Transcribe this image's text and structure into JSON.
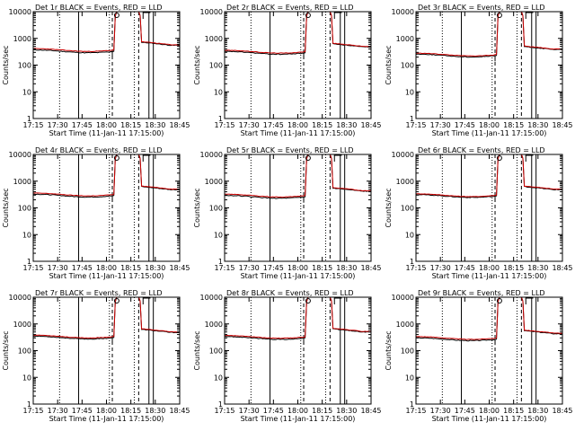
{
  "chart_data": [
    {
      "type": "line",
      "title": "Det 1r BLACK = Events, RED = LLD",
      "xlabel": "Start Time (11-Jan-11 17:15:00)",
      "ylabel": "Counts/sec",
      "yscale": "log",
      "ylim": [
        1,
        10000
      ],
      "xlim": [
        0,
        100
      ],
      "x_tick_labels": [
        "17:15",
        "17:30",
        "17:45",
        "18:00",
        "18:15",
        "18:30",
        "18:45"
      ],
      "y_tick_labels": [
        "1",
        "10",
        "100",
        "1000",
        "10000"
      ],
      "grid": false,
      "events_baseline": 330,
      "lld_baseline": 370,
      "post_level": 550
    },
    {
      "type": "line",
      "title": "Det 2r BLACK = Events, RED = LLD",
      "xlabel": "Start Time (11-Jan-11 17:15:00)",
      "ylabel": "Counts/sec",
      "yscale": "log",
      "ylim": [
        1,
        10000
      ],
      "xlim": [
        0,
        100
      ],
      "x_tick_labels": [
        "17:15",
        "17:30",
        "17:45",
        "18:00",
        "18:15",
        "18:30",
        "18:45"
      ],
      "y_tick_labels": [
        "1",
        "10",
        "100",
        "1000",
        "10000"
      ],
      "grid": false,
      "events_baseline": 290,
      "lld_baseline": 320,
      "post_level": 480
    },
    {
      "type": "line",
      "title": "Det 3r BLACK = Events, RED = LLD",
      "xlabel": "Start Time (11-Jan-11 17:15:00)",
      "ylabel": "Counts/sec",
      "yscale": "log",
      "ylim": [
        1,
        10000
      ],
      "xlim": [
        0,
        100
      ],
      "x_tick_labels": [
        "17:15",
        "17:30",
        "17:45",
        "18:00",
        "18:15",
        "18:30",
        "18:45"
      ],
      "y_tick_labels": [
        "1",
        "10",
        "100",
        "1000",
        "10000"
      ],
      "grid": false,
      "events_baseline": 230,
      "lld_baseline": 250,
      "post_level": 380
    },
    {
      "type": "line",
      "title": "Det 4r BLACK = Events, RED = LLD",
      "xlabel": "Start Time (11-Jan-11 17:15:00)",
      "ylabel": "Counts/sec",
      "yscale": "log",
      "ylim": [
        1,
        10000
      ],
      "xlim": [
        0,
        100
      ],
      "x_tick_labels": [
        "17:15",
        "17:30",
        "17:45",
        "18:00",
        "18:15",
        "18:30",
        "18:45"
      ],
      "y_tick_labels": [
        "1",
        "10",
        "100",
        "1000",
        "10000"
      ],
      "grid": false,
      "events_baseline": 290,
      "lld_baseline": 320,
      "post_level": 480
    },
    {
      "type": "line",
      "title": "Det 5r BLACK = Events, RED = LLD",
      "xlabel": "Start Time (11-Jan-11 17:15:00)",
      "ylabel": "Counts/sec",
      "yscale": "log",
      "ylim": [
        1,
        10000
      ],
      "xlim": [
        0,
        100
      ],
      "x_tick_labels": [
        "17:15",
        "17:30",
        "17:45",
        "18:00",
        "18:15",
        "18:30",
        "18:45"
      ],
      "y_tick_labels": [
        "1",
        "10",
        "100",
        "1000",
        "10000"
      ],
      "grid": false,
      "events_baseline": 260,
      "lld_baseline": 290,
      "post_level": 420
    },
    {
      "type": "line",
      "title": "Det 6r BLACK = Events, RED = LLD",
      "xlabel": "Start Time (11-Jan-11 17:15:00)",
      "ylabel": "Counts/sec",
      "yscale": "log",
      "ylim": [
        1,
        10000
      ],
      "xlim": [
        0,
        100
      ],
      "x_tick_labels": [
        "17:15",
        "17:30",
        "17:45",
        "18:00",
        "18:15",
        "18:30",
        "18:45"
      ],
      "y_tick_labels": [
        "1",
        "10",
        "100",
        "1000",
        "10000"
      ],
      "grid": false,
      "events_baseline": 280,
      "lld_baseline": 300,
      "post_level": 480
    },
    {
      "type": "line",
      "title": "Det 7r BLACK = Events, RED = LLD",
      "xlabel": "Start Time (11-Jan-11 17:15:00)",
      "ylabel": "Counts/sec",
      "yscale": "log",
      "ylim": [
        1,
        10000
      ],
      "xlim": [
        0,
        100
      ],
      "x_tick_labels": [
        "17:15",
        "17:30",
        "17:45",
        "18:00",
        "18:15",
        "18:30",
        "18:45"
      ],
      "y_tick_labels": [
        "1",
        "10",
        "100",
        "1000",
        "10000"
      ],
      "grid": false,
      "events_baseline": 310,
      "lld_baseline": 340,
      "post_level": 480
    },
    {
      "type": "line",
      "title": "Det 8r BLACK = Events, RED = LLD",
      "xlabel": "Start Time (11-Jan-11 17:15:00)",
      "ylabel": "Counts/sec",
      "yscale": "log",
      "ylim": [
        1,
        10000
      ],
      "xlim": [
        0,
        100
      ],
      "x_tick_labels": [
        "17:15",
        "17:30",
        "17:45",
        "18:00",
        "18:15",
        "18:30",
        "18:45"
      ],
      "y_tick_labels": [
        "1",
        "10",
        "100",
        "1000",
        "10000"
      ],
      "grid": false,
      "events_baseline": 300,
      "lld_baseline": 330,
      "post_level": 500
    },
    {
      "type": "line",
      "title": "Det 9r BLACK = Events, RED = LLD",
      "xlabel": "Start Time (11-Jan-11 17:15:00)",
      "ylabel": "Counts/sec",
      "yscale": "log",
      "ylim": [
        1,
        10000
      ],
      "xlim": [
        0,
        100
      ],
      "x_tick_labels": [
        "17:15",
        "17:30",
        "17:45",
        "18:00",
        "18:15",
        "18:30",
        "18:45"
      ],
      "y_tick_labels": [
        "1",
        "10",
        "100",
        "1000",
        "10000"
      ],
      "grid": false,
      "events_baseline": 270,
      "lld_baseline": 300,
      "post_level": 430
    }
  ],
  "colors": {
    "events": "#000000",
    "lld": "#cc0000",
    "background": "#ffffff"
  }
}
